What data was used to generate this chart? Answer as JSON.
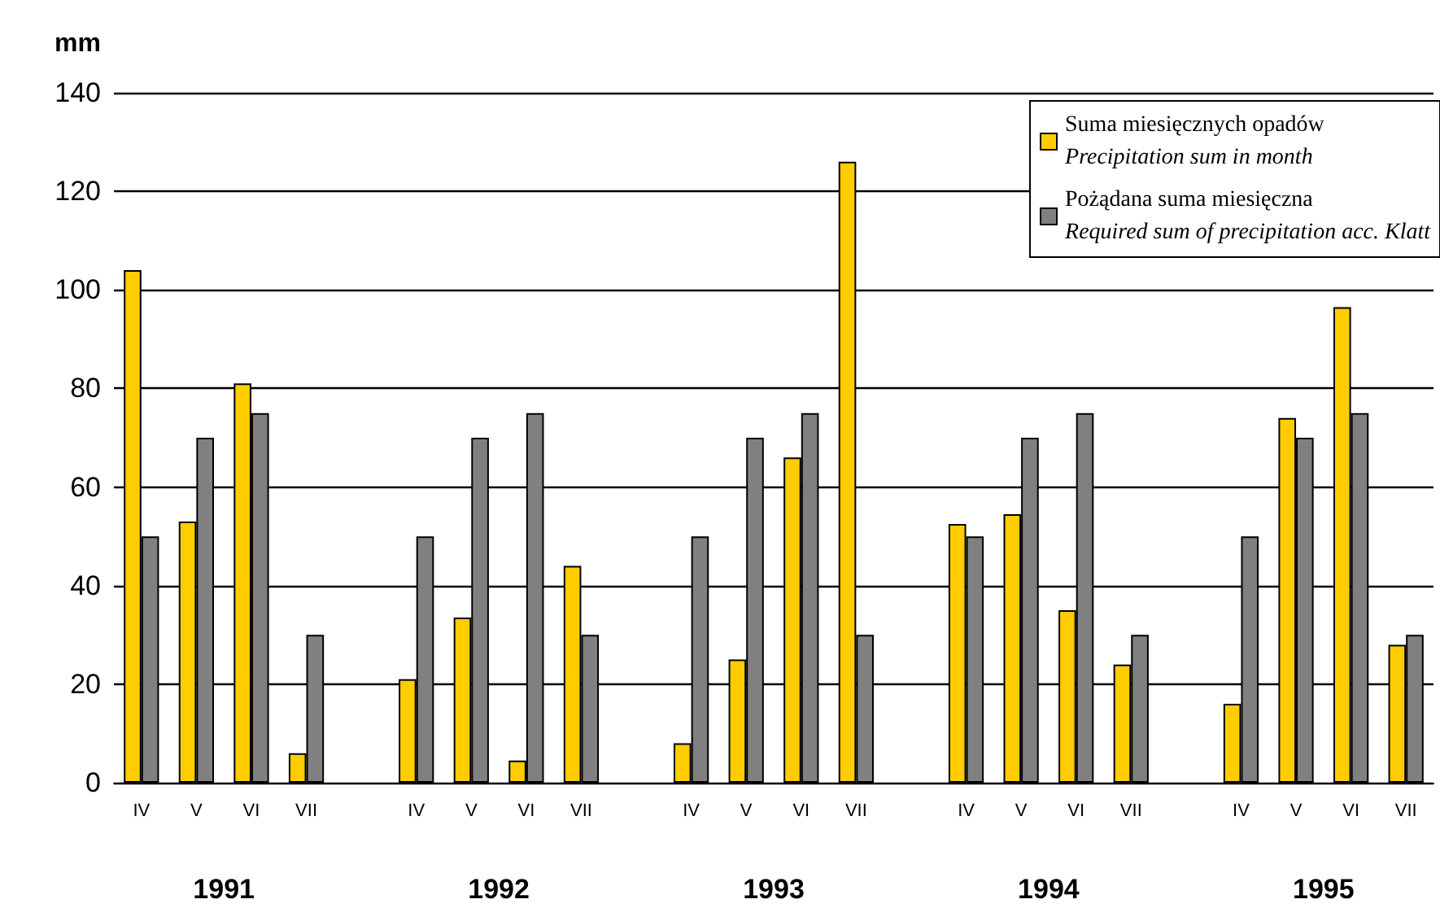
{
  "chart_data": {
    "type": "bar",
    "ylabel": "mm",
    "categories": [
      "IV",
      "V",
      "VI",
      "VII",
      null,
      "IV",
      "V",
      "VI",
      "VII",
      null,
      "IV",
      "V",
      "VI",
      "VII",
      null,
      "IV",
      "V",
      "VI",
      "VII",
      null,
      "IV",
      "V",
      "VI",
      "VII"
    ],
    "series": [
      {
        "name": "Suma miesięcznych opadów\nPrecipitation sum in month",
        "color": "#ffcc00",
        "values": [
          104,
          53,
          81,
          6,
          null,
          21,
          33.5,
          4.5,
          44,
          null,
          8,
          25,
          66,
          126,
          null,
          52.5,
          54.5,
          35,
          24,
          null,
          16,
          74,
          96.5,
          28
        ]
      },
      {
        "name": "Pożądana suma miesięczna\nRequired sum of precipitation acc. Klatt",
        "color": "#808080",
        "values": [
          50,
          70,
          75,
          30,
          null,
          50,
          70,
          75,
          30,
          null,
          50,
          70,
          75,
          30,
          null,
          50,
          70,
          75,
          30,
          null,
          50,
          70,
          75,
          30
        ]
      }
    ],
    "annotations": [
      "1991",
      "1992",
      "1993",
      "1994",
      "1995"
    ],
    "ylim": [
      0,
      140
    ],
    "yticks": [
      0,
      20,
      40,
      60,
      80,
      100,
      120,
      140
    ],
    "grid": "y",
    "legend": "top right"
  }
}
